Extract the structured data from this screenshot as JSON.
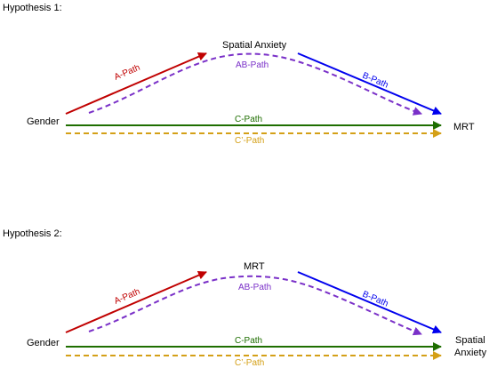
{
  "diagrams": [
    {
      "heading": "Hypothesis 1:",
      "left_node": "Gender",
      "top_node": "Spatial Anxiety",
      "right_node": [
        "MRT"
      ],
      "paths": {
        "a": "A-Path",
        "b": "B-Path",
        "ab": "AB-Path",
        "c": "C-Path",
        "c_prime": "C’-Path"
      }
    },
    {
      "heading": "Hypothesis 2:",
      "left_node": "Gender",
      "top_node": "MRT",
      "right_node": [
        "Spatial",
        "Anxiety"
      ],
      "paths": {
        "a": "A-Path",
        "b": "B-Path",
        "ab": "AB-Path",
        "c": "C-Path",
        "c_prime": "C’-Path"
      }
    }
  ],
  "colors": {
    "a_path": "#c00000",
    "b_path": "#0000ee",
    "ab_path": "#7a30c8",
    "c_path": "#1e6e00",
    "c_prime_path": "#d4a017"
  }
}
